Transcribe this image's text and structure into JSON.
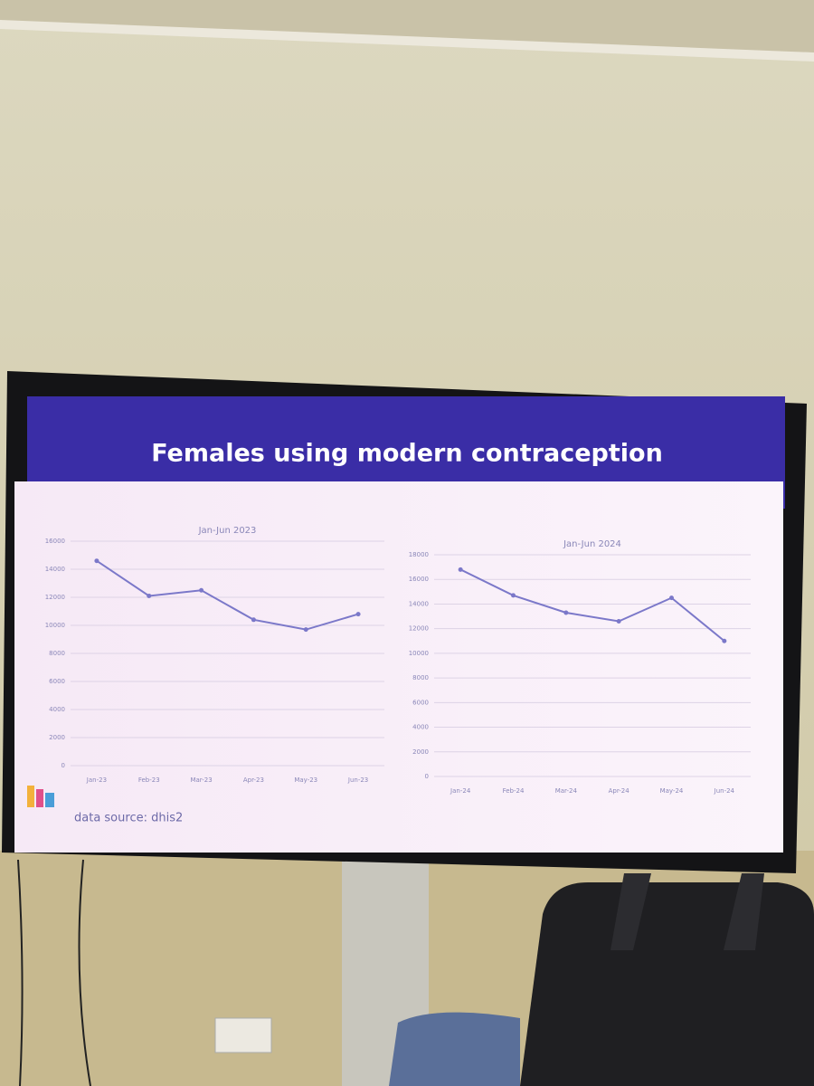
{
  "slide": {
    "title": "Females using modern contraception",
    "source": "data source: dhis2"
  },
  "chart_data": [
    {
      "type": "line",
      "title": "Jan-Jun 2023",
      "categories": [
        "Jan-23",
        "Feb-23",
        "Mar-23",
        "Apr-23",
        "May-23",
        "Jun-23"
      ],
      "values": [
        14600,
        12100,
        12500,
        10400,
        9700,
        10800
      ],
      "color": "#7b78c9",
      "ylim": [
        0,
        16000
      ],
      "yticks": [
        0,
        2000,
        4000,
        6000,
        8000,
        10000,
        12000,
        14000,
        16000
      ],
      "grid": true
    },
    {
      "type": "line",
      "title": "Jan-Jun 2024",
      "categories": [
        "Jan-24",
        "Feb-24",
        "Mar-24",
        "Apr-24",
        "May-24",
        "Jun-24"
      ],
      "values": [
        16800,
        14700,
        13300,
        12600,
        14500,
        11000
      ],
      "color": "#7b78c9",
      "ylim": [
        0,
        18000
      ],
      "yticks": [
        0,
        2000,
        4000,
        6000,
        8000,
        10000,
        12000,
        14000,
        16000,
        18000
      ],
      "grid": true
    }
  ]
}
